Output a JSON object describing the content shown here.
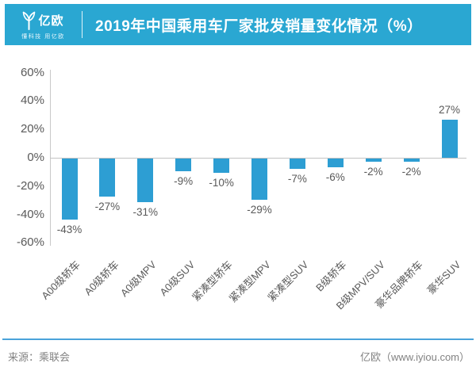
{
  "header": {
    "logo_text": "亿欧",
    "logo_tagline": "懂科技 用亿欧",
    "title": "2019年中国乘用车厂家批发销量变化情况（%）",
    "bg_color": "#2aa7d2"
  },
  "chart_data": {
    "type": "bar",
    "title": "2019年中国乘用车厂家批发销量变化情况（%）",
    "categories": [
      "A00级轿车",
      "A0级轿车",
      "A0级MPV",
      "A0级SUV",
      "紧凑型轿车",
      "紧凑型MPV",
      "紧凑型SUV",
      "B级轿车",
      "B级MPV/SUV",
      "豪华品牌轿车",
      "豪华SUV"
    ],
    "values": [
      -43,
      -27,
      -31,
      -9,
      -10,
      -29,
      -7,
      -6,
      -2,
      -2,
      27
    ],
    "value_labels": [
      "-43%",
      "-27%",
      "-31%",
      "-9%",
      "-10%",
      "-29%",
      "-7%",
      "-6%",
      "-2%",
      "-2%",
      "27%"
    ],
    "xlabel": "",
    "ylabel": "",
    "ylim": [
      -60,
      60
    ],
    "ytick_step": 20,
    "ytick_labels": [
      "60%",
      "40%",
      "20%",
      "0%",
      "-20%",
      "-40%",
      "-60%"
    ],
    "ytick_values": [
      60,
      40,
      20,
      0,
      -20,
      -40,
      -60
    ],
    "grid": false,
    "legend": null,
    "bar_color": "#2d9ed3",
    "axis_color": "#c9c9c9",
    "label_color": "#595959"
  },
  "footer": {
    "source": "来源：乘联会",
    "site": "亿欧（www.iyiou.com）",
    "line_color": "#4aa3da"
  }
}
